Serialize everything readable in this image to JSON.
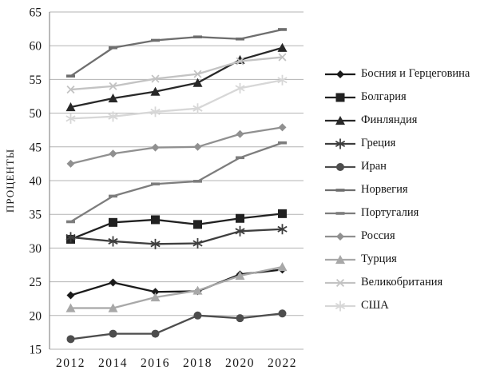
{
  "figure": {
    "background": "#ffffff",
    "gridline_color": "#b3b3b3",
    "axis_color": "#8c8c8c",
    "text_color": "#151515"
  },
  "chart_data": {
    "type": "line",
    "title": "",
    "xlabel": "",
    "ylabel": "ПРОЦЕНТЫ",
    "ylim": [
      15,
      65
    ],
    "y_ticks": [
      65,
      60,
      55,
      50,
      45,
      40,
      35,
      30,
      25,
      20,
      15
    ],
    "grid": true,
    "legend_position": "right",
    "categories": [
      "2012",
      "2014",
      "2016",
      "2018",
      "2020",
      "2022"
    ],
    "series": [
      {
        "name": "Босния и Герцеговина",
        "marker": "diamond",
        "color": "#1a1a1a",
        "values": [
          23.0,
          24.9,
          23.5,
          23.6,
          26.1,
          26.8
        ]
      },
      {
        "name": "Болгария",
        "marker": "square",
        "color": "#212121",
        "values": [
          31.3,
          33.8,
          34.2,
          33.5,
          34.4,
          35.1
        ]
      },
      {
        "name": "Финляндия",
        "marker": "triangle",
        "color": "#282828",
        "values": [
          50.9,
          52.2,
          53.2,
          54.5,
          57.9,
          59.7
        ]
      },
      {
        "name": "Греция",
        "marker": "asterisk",
        "color": "#3e3e3e",
        "values": [
          31.6,
          31.0,
          30.6,
          30.7,
          32.5,
          32.8
        ]
      },
      {
        "name": "Иран",
        "marker": "circle",
        "color": "#4d4d4d",
        "values": [
          16.5,
          17.3,
          17.3,
          20.0,
          19.6,
          20.3
        ]
      },
      {
        "name": "Норвегия",
        "marker": "dash",
        "color": "#6e6e6e",
        "values": [
          55.5,
          59.7,
          60.8,
          61.3,
          61.0,
          62.4
        ]
      },
      {
        "name": "Португалия",
        "marker": "dash",
        "color": "#7d7d7d",
        "values": [
          33.9,
          37.7,
          39.5,
          39.9,
          43.4,
          45.6
        ]
      },
      {
        "name": "Россия",
        "marker": "diamond",
        "color": "#909090",
        "values": [
          42.5,
          44.0,
          44.9,
          45.0,
          46.9,
          47.9
        ]
      },
      {
        "name": "Турция",
        "marker": "triangle",
        "color": "#a8a8a8",
        "values": [
          21.1,
          21.1,
          22.7,
          23.7,
          25.9,
          27.2
        ]
      },
      {
        "name": "Великобритания",
        "marker": "x",
        "color": "#c3c3c3",
        "values": [
          53.5,
          54.0,
          55.1,
          55.8,
          57.7,
          58.3
        ]
      },
      {
        "name": "США",
        "marker": "asterisk",
        "color": "#d7d7d7",
        "values": [
          49.2,
          49.5,
          50.2,
          50.7,
          53.7,
          54.9
        ]
      }
    ]
  }
}
